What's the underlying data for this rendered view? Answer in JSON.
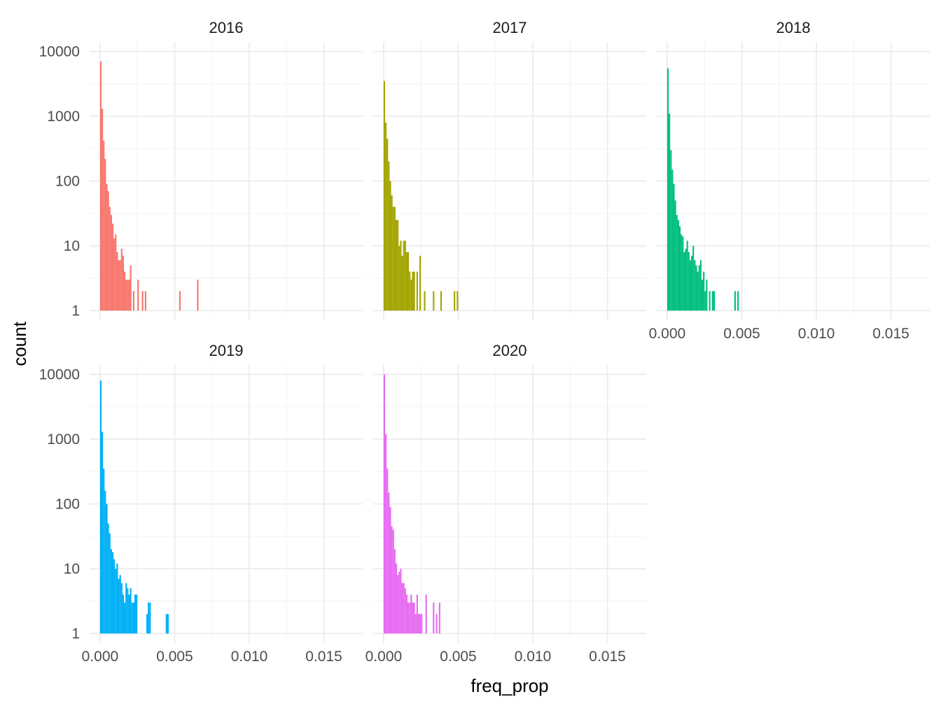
{
  "chart_data": {
    "type": "bar",
    "chart_kind": "faceted histogram",
    "xlabel": "freq_prop",
    "ylabel": "count",
    "y_scale": "log10",
    "xlim": [
      -0.0007,
      0.0176
    ],
    "ylim": [
      0.85,
      14000
    ],
    "x_ticks": [
      0.0,
      0.005,
      0.01,
      0.015
    ],
    "x_tick_labels": [
      "0.000",
      "0.005",
      "0.010",
      "0.015"
    ],
    "y_ticks": [
      1,
      10,
      100,
      1000,
      10000
    ],
    "y_tick_labels": [
      "1",
      "10",
      "100",
      "1000",
      "10000"
    ],
    "grid": true,
    "legend": "none",
    "bin_width": 0.0001,
    "facets": [
      {
        "title": "2016",
        "color": "#F8766D",
        "bins": [
          {
            "x": 5e-05,
            "count": 7000
          },
          {
            "x": 0.00015,
            "count": 1300
          },
          {
            "x": 0.00025,
            "count": 420
          },
          {
            "x": 0.00035,
            "count": 220
          },
          {
            "x": 0.00045,
            "count": 90
          },
          {
            "x": 0.00055,
            "count": 70
          },
          {
            "x": 0.00065,
            "count": 40
          },
          {
            "x": 0.00075,
            "count": 30
          },
          {
            "x": 0.00085,
            "count": 22
          },
          {
            "x": 0.00095,
            "count": 13
          },
          {
            "x": 0.00105,
            "count": 15
          },
          {
            "x": 0.00115,
            "count": 8
          },
          {
            "x": 0.00125,
            "count": 6
          },
          {
            "x": 0.00135,
            "count": 6
          },
          {
            "x": 0.00145,
            "count": 9
          },
          {
            "x": 0.00155,
            "count": 7
          },
          {
            "x": 0.00165,
            "count": 4
          },
          {
            "x": 0.00175,
            "count": 3
          },
          {
            "x": 0.00185,
            "count": 3
          },
          {
            "x": 0.00195,
            "count": 3
          },
          {
            "x": 0.00205,
            "count": 5
          },
          {
            "x": 0.00225,
            "count": 2
          },
          {
            "x": 0.00255,
            "count": 3
          },
          {
            "x": 0.00285,
            "count": 2
          },
          {
            "x": 0.00305,
            "count": 2
          },
          {
            "x": 0.00535,
            "count": 2
          },
          {
            "x": 0.00655,
            "count": 3
          }
        ]
      },
      {
        "title": "2017",
        "color": "#A3A500",
        "bins": [
          {
            "x": 5e-05,
            "count": 3500
          },
          {
            "x": 0.00015,
            "count": 800
          },
          {
            "x": 0.00025,
            "count": 450
          },
          {
            "x": 0.00035,
            "count": 200
          },
          {
            "x": 0.00045,
            "count": 100
          },
          {
            "x": 0.00055,
            "count": 60
          },
          {
            "x": 0.00065,
            "count": 40
          },
          {
            "x": 0.00075,
            "count": 40
          },
          {
            "x": 0.00085,
            "count": 25
          },
          {
            "x": 0.00095,
            "count": 25
          },
          {
            "x": 0.00105,
            "count": 10
          },
          {
            "x": 0.00115,
            "count": 12
          },
          {
            "x": 0.00125,
            "count": 7
          },
          {
            "x": 0.00135,
            "count": 12
          },
          {
            "x": 0.00145,
            "count": 12
          },
          {
            "x": 0.00155,
            "count": 8
          },
          {
            "x": 0.00165,
            "count": 8
          },
          {
            "x": 0.00175,
            "count": 4
          },
          {
            "x": 0.00185,
            "count": 3
          },
          {
            "x": 0.00195,
            "count": 4
          },
          {
            "x": 0.00205,
            "count": 4
          },
          {
            "x": 0.00225,
            "count": 4
          },
          {
            "x": 0.00245,
            "count": 7
          },
          {
            "x": 0.00275,
            "count": 2
          },
          {
            "x": 0.00335,
            "count": 2
          },
          {
            "x": 0.00385,
            "count": 2
          },
          {
            "x": 0.00475,
            "count": 2
          },
          {
            "x": 0.00495,
            "count": 2
          }
        ]
      },
      {
        "title": "2018",
        "color": "#00BF7D",
        "bins": [
          {
            "x": 5e-05,
            "count": 5500
          },
          {
            "x": 0.00015,
            "count": 1100
          },
          {
            "x": 0.00025,
            "count": 300
          },
          {
            "x": 0.00035,
            "count": 150
          },
          {
            "x": 0.00045,
            "count": 90
          },
          {
            "x": 0.00055,
            "count": 50
          },
          {
            "x": 0.00065,
            "count": 30
          },
          {
            "x": 0.00075,
            "count": 25
          },
          {
            "x": 0.00085,
            "count": 20
          },
          {
            "x": 0.00095,
            "count": 15
          },
          {
            "x": 0.00105,
            "count": 14
          },
          {
            "x": 0.00115,
            "count": 8
          },
          {
            "x": 0.00125,
            "count": 9
          },
          {
            "x": 0.00135,
            "count": 12
          },
          {
            "x": 0.00145,
            "count": 8
          },
          {
            "x": 0.00155,
            "count": 6
          },
          {
            "x": 0.00165,
            "count": 7
          },
          {
            "x": 0.00175,
            "count": 10
          },
          {
            "x": 0.00185,
            "count": 6
          },
          {
            "x": 0.00195,
            "count": 5
          },
          {
            "x": 0.00205,
            "count": 4
          },
          {
            "x": 0.00215,
            "count": 5
          },
          {
            "x": 0.00225,
            "count": 6
          },
          {
            "x": 0.00235,
            "count": 3
          },
          {
            "x": 0.00245,
            "count": 4
          },
          {
            "x": 0.00255,
            "count": 2
          },
          {
            "x": 0.00265,
            "count": 3
          },
          {
            "x": 0.00285,
            "count": 2
          },
          {
            "x": 0.00305,
            "count": 2
          },
          {
            "x": 0.00315,
            "count": 2
          },
          {
            "x": 0.00455,
            "count": 2
          },
          {
            "x": 0.00475,
            "count": 2
          }
        ]
      },
      {
        "title": "2019",
        "color": "#00B0F6",
        "bins": [
          {
            "x": 5e-05,
            "count": 8000
          },
          {
            "x": 0.00015,
            "count": 1300
          },
          {
            "x": 0.00025,
            "count": 350
          },
          {
            "x": 0.00035,
            "count": 160
          },
          {
            "x": 0.00045,
            "count": 100
          },
          {
            "x": 0.00055,
            "count": 50
          },
          {
            "x": 0.00065,
            "count": 35
          },
          {
            "x": 0.00075,
            "count": 20
          },
          {
            "x": 0.00085,
            "count": 18
          },
          {
            "x": 0.00095,
            "count": 14
          },
          {
            "x": 0.00105,
            "count": 10
          },
          {
            "x": 0.00115,
            "count": 12
          },
          {
            "x": 0.00125,
            "count": 7
          },
          {
            "x": 0.00135,
            "count": 8
          },
          {
            "x": 0.00145,
            "count": 6
          },
          {
            "x": 0.00155,
            "count": 4
          },
          {
            "x": 0.00165,
            "count": 3
          },
          {
            "x": 0.00175,
            "count": 6
          },
          {
            "x": 0.00185,
            "count": 5
          },
          {
            "x": 0.00195,
            "count": 4
          },
          {
            "x": 0.00205,
            "count": 5
          },
          {
            "x": 0.00215,
            "count": 3
          },
          {
            "x": 0.00225,
            "count": 3
          },
          {
            "x": 0.00235,
            "count": 4
          },
          {
            "x": 0.00245,
            "count": 4
          },
          {
            "x": 0.00315,
            "count": 2
          },
          {
            "x": 0.00325,
            "count": 3
          },
          {
            "x": 0.00335,
            "count": 3
          },
          {
            "x": 0.00445,
            "count": 2
          },
          {
            "x": 0.00455,
            "count": 2
          }
        ]
      },
      {
        "title": "2020",
        "color": "#E76BF3",
        "bins": [
          {
            "x": 5e-05,
            "count": 10000
          },
          {
            "x": 0.00015,
            "count": 1200
          },
          {
            "x": 0.00025,
            "count": 350
          },
          {
            "x": 0.00035,
            "count": 150
          },
          {
            "x": 0.00045,
            "count": 90
          },
          {
            "x": 0.00055,
            "count": 45
          },
          {
            "x": 0.00065,
            "count": 40
          },
          {
            "x": 0.00075,
            "count": 20
          },
          {
            "x": 0.00085,
            "count": 12
          },
          {
            "x": 0.00095,
            "count": 8
          },
          {
            "x": 0.00105,
            "count": 9
          },
          {
            "x": 0.00115,
            "count": 10
          },
          {
            "x": 0.00125,
            "count": 6
          },
          {
            "x": 0.00135,
            "count": 6
          },
          {
            "x": 0.00145,
            "count": 5
          },
          {
            "x": 0.00155,
            "count": 4
          },
          {
            "x": 0.00165,
            "count": 3
          },
          {
            "x": 0.00175,
            "count": 3
          },
          {
            "x": 0.00185,
            "count": 4
          },
          {
            "x": 0.00195,
            "count": 3
          },
          {
            "x": 0.00205,
            "count": 3
          },
          {
            "x": 0.00215,
            "count": 2
          },
          {
            "x": 0.00225,
            "count": 4
          },
          {
            "x": 0.00235,
            "count": 2
          },
          {
            "x": 0.00245,
            "count": 2
          },
          {
            "x": 0.00255,
            "count": 2
          },
          {
            "x": 0.00285,
            "count": 4
          },
          {
            "x": 0.00335,
            "count": 3
          },
          {
            "x": 0.00355,
            "count": 2
          },
          {
            "x": 0.00375,
            "count": 3
          }
        ]
      }
    ]
  }
}
